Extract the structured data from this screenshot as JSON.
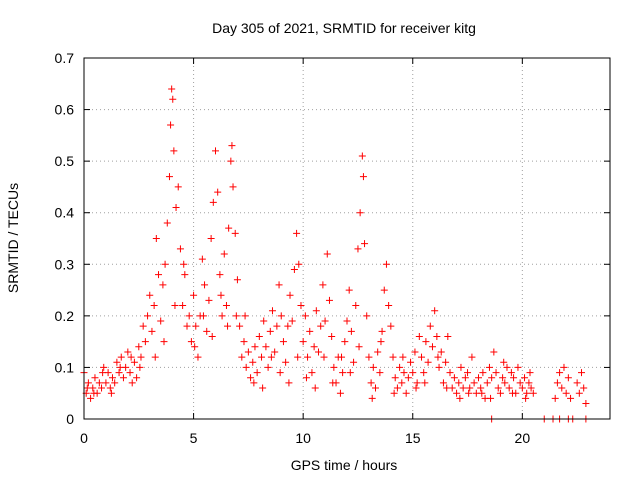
{
  "chart_data": {
    "type": "scatter",
    "title": "Day 305 of 2021, SRMTID for receiver kitg",
    "xlabel": "GPS time / hours",
    "ylabel": "SRMTID / TECUs",
    "xlim": [
      0,
      24
    ],
    "ylim": [
      0,
      0.7
    ],
    "xticks": [
      0,
      5,
      10,
      15,
      20
    ],
    "yticks": [
      0,
      0.1,
      0.2,
      0.3,
      0.4,
      0.5,
      0.6,
      0.7
    ],
    "grid": true,
    "marker": "+",
    "color": "#ff0000",
    "series": [
      {
        "name": "SRMTID",
        "points": [
          [
            0.0,
            0.09
          ],
          [
            0.1,
            0.05
          ],
          [
            0.2,
            0.07
          ],
          [
            0.3,
            0.04
          ],
          [
            0.4,
            0.06
          ],
          [
            0.5,
            0.08
          ],
          [
            0.6,
            0.05
          ],
          [
            0.7,
            0.07
          ],
          [
            0.8,
            0.06
          ],
          [
            0.9,
            0.1
          ],
          [
            1.0,
            0.07
          ],
          [
            1.1,
            0.09
          ],
          [
            1.2,
            0.06
          ],
          [
            1.3,
            0.08
          ],
          [
            1.4,
            0.07
          ],
          [
            1.5,
            0.11
          ],
          [
            1.6,
            0.09
          ],
          [
            1.7,
            0.12
          ],
          [
            1.8,
            0.08
          ],
          [
            1.9,
            0.1
          ],
          [
            2.0,
            0.13
          ],
          [
            2.1,
            0.09
          ],
          [
            2.2,
            0.07
          ],
          [
            2.3,
            0.11
          ],
          [
            2.4,
            0.08
          ],
          [
            2.5,
            0.14
          ],
          [
            2.6,
            0.12
          ],
          [
            2.7,
            0.18
          ],
          [
            2.8,
            0.15
          ],
          [
            2.9,
            0.2
          ],
          [
            3.0,
            0.24
          ],
          [
            3.1,
            0.17
          ],
          [
            3.2,
            0.22
          ],
          [
            3.3,
            0.35
          ],
          [
            3.4,
            0.28
          ],
          [
            3.5,
            0.19
          ],
          [
            3.6,
            0.26
          ],
          [
            3.7,
            0.3
          ],
          [
            3.8,
            0.38
          ],
          [
            3.9,
            0.47
          ],
          [
            3.95,
            0.57
          ],
          [
            4.0,
            0.64
          ],
          [
            4.05,
            0.62
          ],
          [
            4.1,
            0.52
          ],
          [
            4.2,
            0.41
          ],
          [
            4.3,
            0.45
          ],
          [
            4.4,
            0.33
          ],
          [
            4.5,
            0.22
          ],
          [
            4.6,
            0.28
          ],
          [
            4.7,
            0.18
          ],
          [
            4.8,
            0.2
          ],
          [
            4.9,
            0.15
          ],
          [
            5.0,
            0.24
          ],
          [
            5.1,
            0.18
          ],
          [
            5.2,
            0.12
          ],
          [
            5.3,
            0.2
          ],
          [
            5.4,
            0.31
          ],
          [
            5.5,
            0.26
          ],
          [
            5.6,
            0.17
          ],
          [
            5.7,
            0.23
          ],
          [
            5.8,
            0.35
          ],
          [
            5.9,
            0.42
          ],
          [
            6.0,
            0.52
          ],
          [
            6.1,
            0.44
          ],
          [
            6.2,
            0.28
          ],
          [
            6.3,
            0.2
          ],
          [
            6.4,
            0.32
          ],
          [
            6.5,
            0.22
          ],
          [
            6.6,
            0.37
          ],
          [
            6.7,
            0.5
          ],
          [
            6.75,
            0.53
          ],
          [
            6.8,
            0.45
          ],
          [
            6.9,
            0.36
          ],
          [
            7.0,
            0.27
          ],
          [
            7.1,
            0.18
          ],
          [
            7.2,
            0.12
          ],
          [
            7.3,
            0.15
          ],
          [
            7.4,
            0.1
          ],
          [
            7.5,
            0.13
          ],
          [
            7.6,
            0.08
          ],
          [
            7.7,
            0.11
          ],
          [
            7.8,
            0.14
          ],
          [
            7.9,
            0.09
          ],
          [
            8.0,
            0.16
          ],
          [
            8.1,
            0.12
          ],
          [
            8.2,
            0.19
          ],
          [
            8.3,
            0.14
          ],
          [
            8.4,
            0.1
          ],
          [
            8.5,
            0.17
          ],
          [
            8.6,
            0.21
          ],
          [
            8.7,
            0.13
          ],
          [
            8.8,
            0.18
          ],
          [
            8.9,
            0.26
          ],
          [
            9.0,
            0.2
          ],
          [
            9.1,
            0.15
          ],
          [
            9.2,
            0.11
          ],
          [
            9.3,
            0.18
          ],
          [
            9.4,
            0.24
          ],
          [
            9.5,
            0.19
          ],
          [
            9.6,
            0.29
          ],
          [
            9.7,
            0.36
          ],
          [
            9.8,
            0.3
          ],
          [
            9.9,
            0.22
          ],
          [
            10.0,
            0.15
          ],
          [
            10.1,
            0.2
          ],
          [
            10.2,
            0.12
          ],
          [
            10.3,
            0.17
          ],
          [
            10.4,
            0.09
          ],
          [
            10.5,
            0.14
          ],
          [
            10.6,
            0.21
          ],
          [
            10.7,
            0.13
          ],
          [
            10.8,
            0.18
          ],
          [
            10.9,
            0.26
          ],
          [
            11.0,
            0.19
          ],
          [
            11.1,
            0.32
          ],
          [
            11.2,
            0.23
          ],
          [
            11.3,
            0.16
          ],
          [
            11.4,
            0.1
          ],
          [
            11.5,
            0.07
          ],
          [
            11.6,
            0.12
          ],
          [
            11.7,
            0.05
          ],
          [
            11.8,
            0.09
          ],
          [
            11.9,
            0.15
          ],
          [
            12.0,
            0.19
          ],
          [
            12.1,
            0.25
          ],
          [
            12.2,
            0.17
          ],
          [
            12.3,
            0.11
          ],
          [
            12.4,
            0.22
          ],
          [
            12.5,
            0.33
          ],
          [
            12.6,
            0.4
          ],
          [
            12.7,
            0.51
          ],
          [
            12.75,
            0.47
          ],
          [
            12.8,
            0.34
          ],
          [
            12.9,
            0.2
          ],
          [
            13.0,
            0.12
          ],
          [
            13.1,
            0.07
          ],
          [
            13.2,
            0.1
          ],
          [
            13.3,
            0.06
          ],
          [
            13.4,
            0.13
          ],
          [
            13.5,
            0.09
          ],
          [
            13.6,
            0.17
          ],
          [
            13.7,
            0.25
          ],
          [
            13.8,
            0.3
          ],
          [
            13.9,
            0.22
          ],
          [
            14.0,
            0.18
          ],
          [
            14.1,
            0.12
          ],
          [
            14.2,
            0.08
          ],
          [
            14.3,
            0.06
          ],
          [
            14.4,
            0.1
          ],
          [
            14.5,
            0.07
          ],
          [
            14.6,
            0.09
          ],
          [
            14.7,
            0.05
          ],
          [
            14.8,
            0.08
          ],
          [
            14.9,
            0.11
          ],
          [
            15.0,
            0.09
          ],
          [
            15.1,
            0.13
          ],
          [
            15.2,
            0.07
          ],
          [
            15.3,
            0.16
          ],
          [
            15.4,
            0.12
          ],
          [
            15.5,
            0.09
          ],
          [
            15.6,
            0.15
          ],
          [
            15.7,
            0.11
          ],
          [
            15.8,
            0.18
          ],
          [
            15.9,
            0.14
          ],
          [
            16.0,
            0.21
          ],
          [
            16.1,
            0.16
          ],
          [
            16.2,
            0.1
          ],
          [
            16.3,
            0.13
          ],
          [
            16.4,
            0.07
          ],
          [
            16.5,
            0.11
          ],
          [
            16.6,
            0.16
          ],
          [
            16.7,
            0.09
          ],
          [
            16.8,
            0.06
          ],
          [
            16.9,
            0.08
          ],
          [
            17.0,
            0.05
          ],
          [
            17.1,
            0.07
          ],
          [
            17.2,
            0.1
          ],
          [
            17.3,
            0.06
          ],
          [
            17.4,
            0.08
          ],
          [
            17.5,
            0.09
          ],
          [
            17.6,
            0.06
          ],
          [
            17.7,
            0.12
          ],
          [
            17.8,
            0.07
          ],
          [
            17.9,
            0.05
          ],
          [
            18.0,
            0.08
          ],
          [
            18.1,
            0.06
          ],
          [
            18.2,
            0.09
          ],
          [
            18.3,
            0.04
          ],
          [
            18.4,
            0.07
          ],
          [
            18.5,
            0.1
          ],
          [
            18.6,
            0.08
          ],
          [
            18.7,
            0.13
          ],
          [
            18.8,
            0.09
          ],
          [
            18.9,
            0.06
          ],
          [
            19.0,
            0.05
          ],
          [
            19.1,
            0.08
          ],
          [
            19.2,
            0.07
          ],
          [
            19.3,
            0.1
          ],
          [
            19.4,
            0.06
          ],
          [
            19.5,
            0.09
          ],
          [
            19.6,
            0.08
          ],
          [
            19.7,
            0.05
          ],
          [
            19.8,
            0.1
          ],
          [
            19.9,
            0.07
          ],
          [
            20.0,
            0.06
          ],
          [
            20.1,
            0.08
          ],
          [
            20.2,
            0.05
          ],
          [
            20.3,
            0.07
          ],
          [
            20.4,
            0.06
          ],
          [
            20.5,
            0.05
          ],
          [
            21.5,
            0.04
          ],
          [
            21.6,
            0.07
          ],
          [
            21.7,
            0.09
          ],
          [
            21.8,
            0.06
          ],
          [
            21.9,
            0.1
          ],
          [
            22.0,
            0.05
          ],
          [
            22.1,
            0.08
          ],
          [
            22.2,
            0.04
          ],
          [
            22.5,
            0.07
          ],
          [
            22.6,
            0.05
          ],
          [
            22.7,
            0.09
          ],
          [
            22.8,
            0.06
          ],
          [
            22.9,
            0.03
          ],
          [
            0.15,
            0.06
          ],
          [
            0.45,
            0.05
          ],
          [
            0.85,
            0.09
          ],
          [
            1.25,
            0.05
          ],
          [
            1.65,
            0.1
          ],
          [
            2.15,
            0.12
          ],
          [
            2.55,
            0.1
          ],
          [
            3.25,
            0.12
          ],
          [
            3.65,
            0.15
          ],
          [
            4.15,
            0.22
          ],
          [
            4.55,
            0.3
          ],
          [
            5.05,
            0.14
          ],
          [
            5.45,
            0.2
          ],
          [
            5.85,
            0.16
          ],
          [
            6.25,
            0.24
          ],
          [
            6.55,
            0.18
          ],
          [
            6.95,
            0.2
          ],
          [
            7.35,
            0.2
          ],
          [
            7.75,
            0.07
          ],
          [
            8.15,
            0.06
          ],
          [
            8.55,
            0.12
          ],
          [
            8.95,
            0.09
          ],
          [
            9.35,
            0.07
          ],
          [
            9.75,
            0.12
          ],
          [
            10.15,
            0.08
          ],
          [
            10.55,
            0.06
          ],
          [
            10.95,
            0.12
          ],
          [
            11.35,
            0.07
          ],
          [
            11.75,
            0.12
          ],
          [
            12.15,
            0.09
          ],
          [
            12.55,
            0.14
          ],
          [
            13.15,
            0.04
          ],
          [
            13.55,
            0.15
          ],
          [
            14.15,
            0.05
          ],
          [
            14.55,
            0.12
          ],
          [
            15.15,
            0.06
          ],
          [
            15.55,
            0.07
          ],
          [
            16.15,
            0.12
          ],
          [
            16.55,
            0.06
          ],
          [
            17.15,
            0.04
          ],
          [
            17.55,
            0.05
          ],
          [
            18.15,
            0.05
          ],
          [
            18.55,
            0.04
          ],
          [
            19.15,
            0.11
          ],
          [
            19.55,
            0.05
          ],
          [
            20.15,
            0.04
          ],
          [
            20.35,
            0.09
          ],
          [
            18.6,
            0.0
          ],
          [
            21.0,
            0.0
          ],
          [
            21.4,
            0.0
          ],
          [
            21.7,
            0.0
          ],
          [
            22.1,
            0.0
          ],
          [
            22.3,
            0.0
          ],
          [
            22.9,
            0.0
          ]
        ]
      }
    ]
  }
}
